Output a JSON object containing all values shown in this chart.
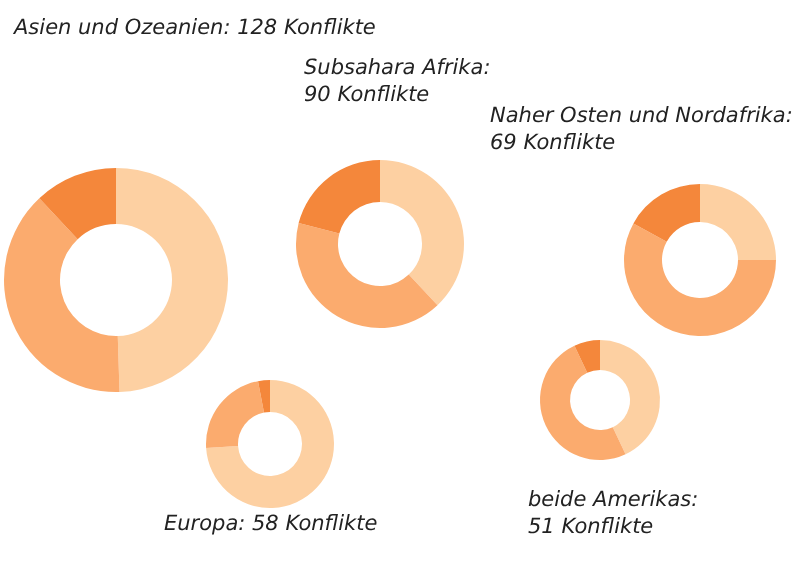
{
  "chart_data": [
    {
      "type": "donut",
      "title": "Asien und Ozeanien: 128 Konflikte",
      "categories": [
        null,
        null,
        null
      ],
      "values": [
        49.5,
        38.5,
        12
      ],
      "colors": [
        "#fdd0a2",
        "#fbab6e",
        "#f4873b"
      ]
    },
    {
      "type": "donut",
      "title": "Subsahara Afrika:\n90 Konflikte",
      "categories": [
        null,
        null,
        null
      ],
      "values": [
        38,
        41,
        21
      ],
      "colors": [
        "#fdd0a2",
        "#fbab6e",
        "#f4873b"
      ]
    },
    {
      "type": "donut",
      "title": "Naher Osten und Nordafrika:\n69 Konflikte",
      "categories": [
        null,
        null,
        null
      ],
      "values": [
        25,
        58,
        17
      ],
      "colors": [
        "#fdd0a2",
        "#fbab6e",
        "#f4873b"
      ]
    },
    {
      "type": "donut",
      "title": "Europa: 58 Konflikte",
      "categories": [
        null,
        null,
        null
      ],
      "values": [
        74,
        23,
        3
      ],
      "colors": [
        "#fdd0a2",
        "#fbab6e",
        "#f4873b"
      ]
    },
    {
      "type": "donut",
      "title": "beide Amerikas:\n51 Konflikte",
      "categories": [
        null,
        null,
        null
      ],
      "values": [
        43,
        50,
        7
      ],
      "colors": [
        "#fdd0a2",
        "#fbab6e",
        "#f4873b"
      ]
    }
  ]
}
